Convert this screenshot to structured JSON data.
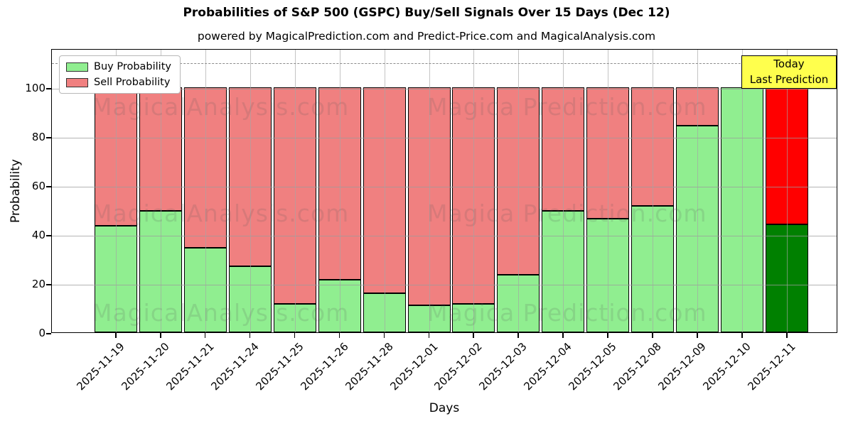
{
  "title": "Probabilities of S&P 500 (GSPC) Buy/Sell Signals Over 15 Days (Dec 12)",
  "subtitle": "powered by MagicalPrediction.com and Predict-Price.com and MagicalAnalysis.com",
  "watermarks": {
    "left_text": "MagicalAnalysis.com",
    "right_text": "Magica Prediction.com"
  },
  "annotation": {
    "line1": "Today",
    "line2": "Last Prediction",
    "bg_color": "#ffff4d"
  },
  "legend": [
    {
      "label": "Buy Probability",
      "color": "#90ee90"
    },
    {
      "label": "Sell Probability",
      "color": "#f08080"
    }
  ],
  "axes": {
    "ylabel": "Probability",
    "xlabel": "Days",
    "yticks": [
      0,
      20,
      40,
      60,
      80,
      100
    ],
    "ylim": [
      0,
      116
    ],
    "dashed_line_y": 110.5,
    "grid": true
  },
  "colors": {
    "buy": "#90ee90",
    "sell": "#f08080",
    "last_buy": "#008000",
    "last_sell": "#ff0000",
    "bar_edge": "#000000",
    "grid": "#b0b0b0"
  },
  "chart_data": {
    "type": "bar",
    "stacked": true,
    "title": "Probabilities of S&P 500 (GSPC) Buy/Sell Signals Over 15 Days (Dec 12)",
    "xlabel": "Days",
    "ylabel": "Probability",
    "ylim": [
      0,
      116
    ],
    "legend_position": "upper left",
    "grid": true,
    "categories": [
      "2025-11-19",
      "2025-11-20",
      "2025-11-21",
      "2025-11-24",
      "2025-11-25",
      "2025-11-26",
      "2025-11-28",
      "2025-12-01",
      "2025-12-02",
      "2025-12-03",
      "2025-12-04",
      "2025-12-05",
      "2025-12-08",
      "2025-12-09",
      "2025-12-10",
      "2025-12-11"
    ],
    "series": [
      {
        "name": "Buy Probability",
        "values": [
          43.5,
          49.5,
          34.5,
          27,
          11.5,
          21.5,
          16,
          11,
          11.5,
          23.5,
          49.5,
          46.5,
          51.5,
          84.5,
          100,
          44
        ]
      },
      {
        "name": "Sell Probability",
        "values": [
          56.5,
          50.5,
          65.5,
          73,
          88.5,
          78.5,
          84,
          89,
          88.5,
          76.5,
          50.5,
          53.5,
          48.5,
          15.5,
          0,
          56
        ]
      }
    ],
    "last_bar_highlight": {
      "buy_color": "#008000",
      "sell_color": "#ff0000",
      "note": "Today / Last Prediction"
    }
  }
}
